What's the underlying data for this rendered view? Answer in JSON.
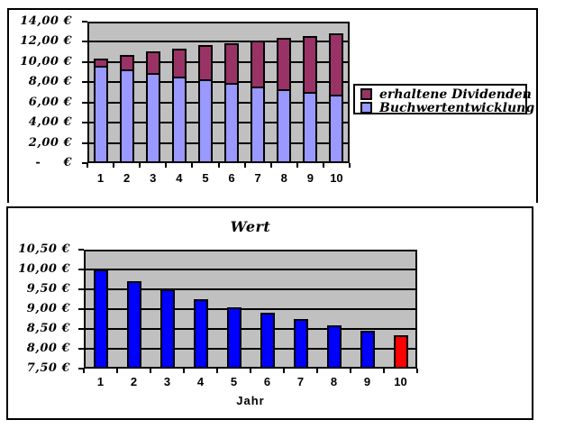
{
  "panels": {
    "top": {
      "legend": {
        "items": [
          {
            "label": "erhaltene Dividenden",
            "color": "#993366"
          },
          {
            "label": "Buchwertentwicklung",
            "color": "#9999FF"
          }
        ]
      }
    },
    "bottom": {
      "title": "Wert",
      "xlabel": "Jahr"
    }
  },
  "chart_data": [
    {
      "type": "bar",
      "stacked": true,
      "title": "",
      "xlabel": "",
      "ylabel": "",
      "categories": [
        "1",
        "2",
        "3",
        "4",
        "5",
        "6",
        "7",
        "8",
        "9",
        "10"
      ],
      "series": [
        {
          "name": "Buchwertentwicklung",
          "color": "#9999FF",
          "values": [
            9.65,
            9.3,
            8.95,
            8.6,
            8.25,
            7.9,
            7.55,
            7.3,
            7.05,
            6.8
          ]
        },
        {
          "name": "erhaltene Dividenden",
          "color": "#993366",
          "values": [
            0.7,
            1.4,
            2.1,
            2.75,
            3.4,
            4.0,
            4.6,
            5.1,
            5.55,
            6.0
          ]
        }
      ],
      "stack_totals": [
        10.35,
        10.7,
        11.05,
        11.35,
        11.65,
        11.9,
        12.15,
        12.4,
        12.6,
        12.8
      ],
      "ylim": [
        0,
        14
      ],
      "yticks": [
        {
          "value": 14,
          "label": "14,00 €"
        },
        {
          "value": 12,
          "label": "12,00 €"
        },
        {
          "value": 10,
          "label": "10,00 €"
        },
        {
          "value": 8,
          "label": "8,00 €"
        },
        {
          "value": 6,
          "label": "6,00 €"
        },
        {
          "value": 4,
          "label": "4,00 €"
        },
        {
          "value": 2,
          "label": "2,00 €"
        },
        {
          "value": 0,
          "label": "-     €"
        }
      ],
      "grid": true,
      "plot_bg": "#C0C0C0",
      "legend_position": "right"
    },
    {
      "type": "bar",
      "title": "Wert",
      "xlabel": "Jahr",
      "ylabel": "",
      "categories": [
        "1",
        "2",
        "3",
        "4",
        "5",
        "6",
        "7",
        "8",
        "9",
        "10"
      ],
      "values": [
        10.0,
        9.7,
        9.5,
        9.25,
        9.05,
        8.9,
        8.75,
        8.6,
        8.45,
        8.35
      ],
      "bar_colors": [
        "#0000FF",
        "#0000FF",
        "#0000FF",
        "#0000FF",
        "#0000FF",
        "#0000FF",
        "#0000FF",
        "#0000FF",
        "#0000FF",
        "#FF0000"
      ],
      "ylim": [
        7.5,
        10.5
      ],
      "yticks": [
        {
          "value": 10.5,
          "label": "10,50 €"
        },
        {
          "value": 10.0,
          "label": "10,00 €"
        },
        {
          "value": 9.5,
          "label": "9,50 €"
        },
        {
          "value": 9.0,
          "label": "9,00 €"
        },
        {
          "value": 8.5,
          "label": "8,50 €"
        },
        {
          "value": 8.0,
          "label": "8,00 €"
        },
        {
          "value": 7.5,
          "label": "7,50 €"
        }
      ],
      "grid": true,
      "plot_bg": "#C0C0C0",
      "legend_position": "none"
    }
  ]
}
